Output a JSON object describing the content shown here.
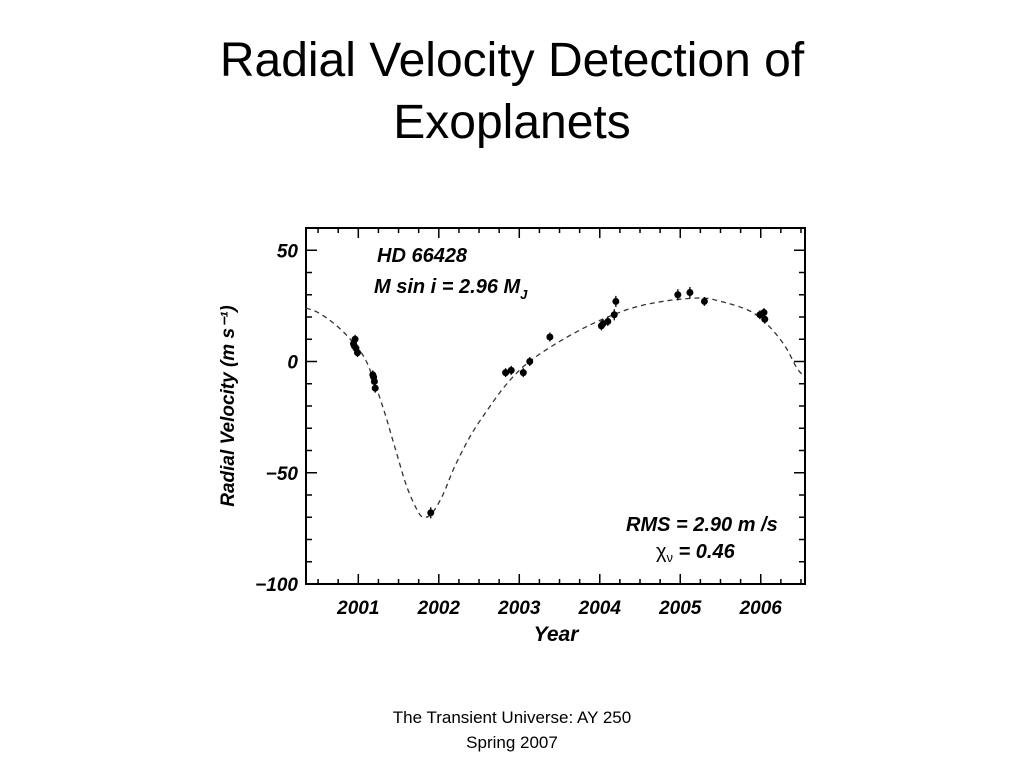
{
  "slide": {
    "title_line1": "Radial Velocity Detection of",
    "title_line2": "Exoplanets"
  },
  "footer": {
    "line1": "The Transient Universe:  AY 250",
    "line2": "Spring 2007"
  },
  "chart_data": {
    "type": "scatter",
    "xlabel": "Year",
    "ylabel": "Radial Velocity  (m s⁻¹)",
    "xlim": [
      2000.35,
      2006.55
    ],
    "ylim": [
      -100,
      60
    ],
    "xticks": [
      2001,
      2002,
      2003,
      2004,
      2005,
      2006
    ],
    "xtick_labels": [
      "2001",
      "2002",
      "2003",
      "2004",
      "2005",
      "2006"
    ],
    "yticks": [
      50,
      0,
      -50,
      -100
    ],
    "ytick_labels": [
      "50",
      "0",
      "−50",
      "−100"
    ],
    "grid": false,
    "annotations": {
      "star": "HD 66428",
      "mass_prefix": "M sin i = 2.96 M",
      "mass_subscript": "J",
      "rms": "RMS = 2.90 m /s",
      "chi_symbol": "χ",
      "chi_subscript": "ν",
      "chi_value": " = 0.46"
    },
    "series": [
      {
        "style": "points-with-errorbars",
        "x": [
          2000.94,
          2000.95,
          2000.96,
          2000.97,
          2000.99,
          2001.18,
          2001.19,
          2001.2,
          2001.21,
          2001.9,
          2002.83,
          2002.9,
          2003.05,
          2003.13,
          2003.38,
          2004.02,
          2004.04,
          2004.1,
          2004.18,
          2004.2,
          2004.97,
          2005.12,
          2005.3,
          2005.99,
          2006.04,
          2006.05
        ],
        "y": [
          8,
          7,
          10,
          6,
          4,
          -6,
          -7,
          -9,
          -12,
          -68,
          -5,
          -4,
          -5,
          0,
          11,
          16,
          17,
          18,
          21,
          27,
          30,
          31,
          27,
          21,
          22,
          19
        ],
        "yerr": [
          2,
          2,
          2,
          2,
          2,
          2,
          2,
          2,
          2,
          2.5,
          2,
          2,
          2,
          2,
          2,
          2,
          2,
          2,
          2.5,
          2.5,
          2.5,
          2.5,
          2,
          2,
          2,
          2
        ]
      },
      {
        "style": "dashed-fit",
        "x": [
          2000.35,
          2000.5,
          2000.7,
          2000.9,
          2001.1,
          2001.3,
          2001.45,
          2001.6,
          2001.75,
          2001.83,
          2001.92,
          2002.05,
          2002.2,
          2002.4,
          2002.6,
          2002.8,
          2003.0,
          2003.2,
          2003.5,
          2003.8,
          2004.1,
          2004.4,
          2004.7,
          2005.0,
          2005.3,
          2005.5,
          2005.7,
          2005.9,
          2006.1,
          2006.3,
          2006.45,
          2006.55
        ],
        "y": [
          24,
          22,
          17,
          10,
          0,
          -20,
          -38,
          -56,
          -68,
          -70,
          -68,
          -60,
          -47,
          -33,
          -22,
          -12,
          -4,
          2,
          9,
          15,
          20,
          24,
          26.5,
          28,
          28.5,
          27,
          25,
          22,
          16,
          7,
          -3,
          -7
        ]
      }
    ]
  }
}
